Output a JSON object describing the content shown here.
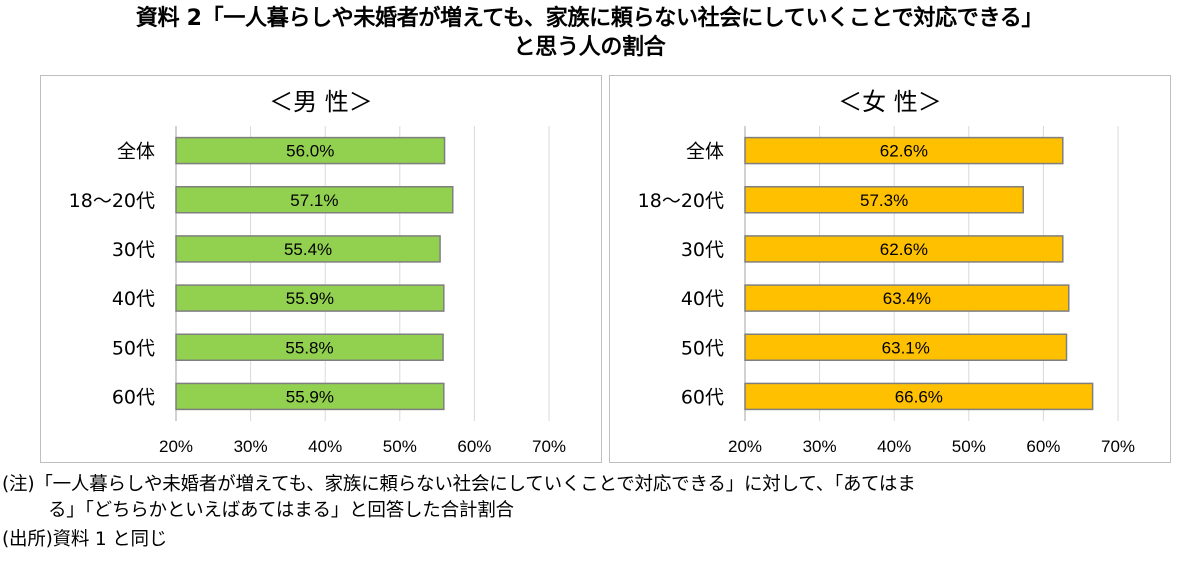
{
  "title_line1": "資料 2「一人暮らしや未婚者が増えても、家族に頼らない社会にしていくことで対応できる」",
  "title_line2": "と思う人の割合",
  "note_line1": "(注)「一人暮らしや未婚者が増えても、家族に頼らない社会にしていくことで対応できる」に対して、「あてはま",
  "note_line2": "る」「どちらかといえばあてはまる」と回答した合計割合",
  "source_line": "(出所)資料 1 と同じ",
  "chart_data": [
    {
      "type": "bar",
      "orientation": "horizontal",
      "title": "＜男 性＞",
      "categories": [
        "全体",
        "18～20代",
        "30代",
        "40代",
        "50代",
        "60代"
      ],
      "values": [
        56.0,
        57.1,
        55.4,
        55.9,
        55.8,
        55.9
      ],
      "data_labels": [
        "56.0%",
        "57.1%",
        "55.4%",
        "55.9%",
        "55.8%",
        "55.9%"
      ],
      "xlim": [
        20,
        70
      ],
      "xticks": [
        20,
        30,
        40,
        50,
        60,
        70
      ],
      "xtick_labels": [
        "20%",
        "30%",
        "40%",
        "50%",
        "60%",
        "70%"
      ],
      "grid": true,
      "color": "#92D050"
    },
    {
      "type": "bar",
      "orientation": "horizontal",
      "title": "＜女 性＞",
      "categories": [
        "全体",
        "18～20代",
        "30代",
        "40代",
        "50代",
        "60代"
      ],
      "values": [
        62.6,
        57.3,
        62.6,
        63.4,
        63.1,
        66.6
      ],
      "data_labels": [
        "62.6%",
        "57.3%",
        "62.6%",
        "63.4%",
        "63.1%",
        "66.6%"
      ],
      "xlim": [
        20,
        70
      ],
      "xticks": [
        20,
        30,
        40,
        50,
        60,
        70
      ],
      "xtick_labels": [
        "20%",
        "30%",
        "40%",
        "50%",
        "60%",
        "70%"
      ],
      "grid": true,
      "color": "#FFC000"
    }
  ]
}
